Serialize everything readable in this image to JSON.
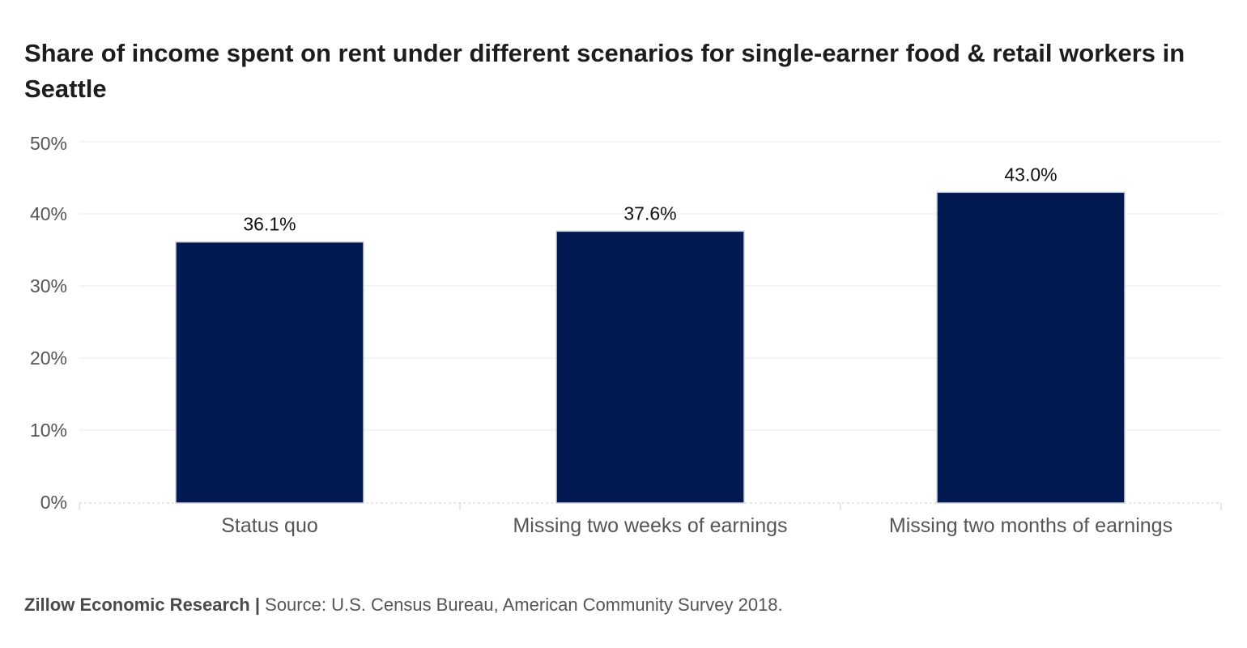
{
  "title": "Share of income spent on rent under different scenarios for single-earner food & retail workers in Seattle",
  "footer": {
    "brand": "Zillow Economic Research",
    "separator": " | ",
    "source": "Source: U.S. Census Bureau, American Community Survey 2018."
  },
  "colors": {
    "bar": "#021952",
    "gridline": "#e8e8e8",
    "axis": "#cfcfcf"
  },
  "chart_data": {
    "type": "bar",
    "categories": [
      "Status quo",
      "Missing two weeks of earnings",
      "Missing two months of earnings"
    ],
    "values": [
      36.1,
      37.6,
      43.0
    ],
    "value_labels": [
      "36.1%",
      "37.6%",
      "43.0%"
    ],
    "yticks": [
      0,
      10,
      20,
      30,
      40,
      50
    ],
    "ytick_labels": [
      "0%",
      "10%",
      "20%",
      "30%",
      "40%",
      "50%"
    ],
    "ylim": [
      0,
      50
    ],
    "grid": true,
    "legend": "none"
  }
}
